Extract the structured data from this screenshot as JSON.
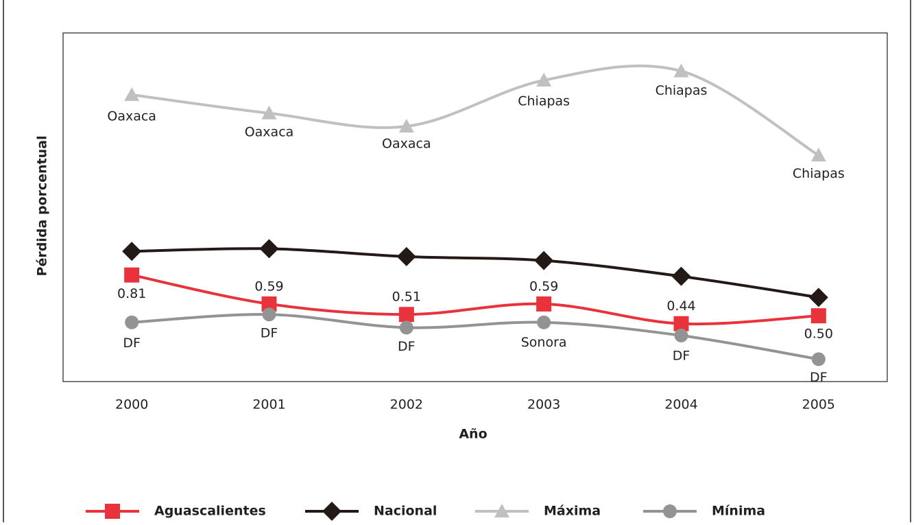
{
  "chart_data": {
    "type": "line",
    "x_label": "Año",
    "y_label": "Pérdida porcentual",
    "categories": [
      "2000",
      "2001",
      "2002",
      "2003",
      "2004",
      "2005"
    ],
    "ylim": [
      0,
      2.65
    ],
    "series": [
      {
        "name": "Aguascalientes",
        "color": "#e8333c",
        "marker": "square",
        "values": [
          0.81,
          0.59,
          0.51,
          0.59,
          0.44,
          0.5
        ],
        "value_labels": [
          "0.81",
          "0.59",
          "0.51",
          "0.59",
          "0.44",
          "0.50"
        ]
      },
      {
        "name": "Nacional",
        "color": "#231916",
        "marker": "diamond",
        "values": [
          0.99,
          1.01,
          0.95,
          0.92,
          0.8,
          0.64
        ]
      },
      {
        "name": "Máxima",
        "color": "#c0c0c0",
        "marker": "triangle",
        "values": [
          2.18,
          2.04,
          1.94,
          2.29,
          2.36,
          1.72
        ],
        "point_labels": [
          "Oaxaca",
          "Oaxaca",
          "Oaxaca",
          "Chiapas",
          "Chiapas",
          "Chiapas"
        ]
      },
      {
        "name": "Mínima",
        "color": "#939393",
        "marker": "circle",
        "values": [
          0.45,
          0.51,
          0.41,
          0.45,
          0.35,
          0.17
        ],
        "point_labels": [
          "DF",
          "DF",
          "DF",
          "Sonora",
          "DF",
          "DF"
        ]
      }
    ]
  }
}
